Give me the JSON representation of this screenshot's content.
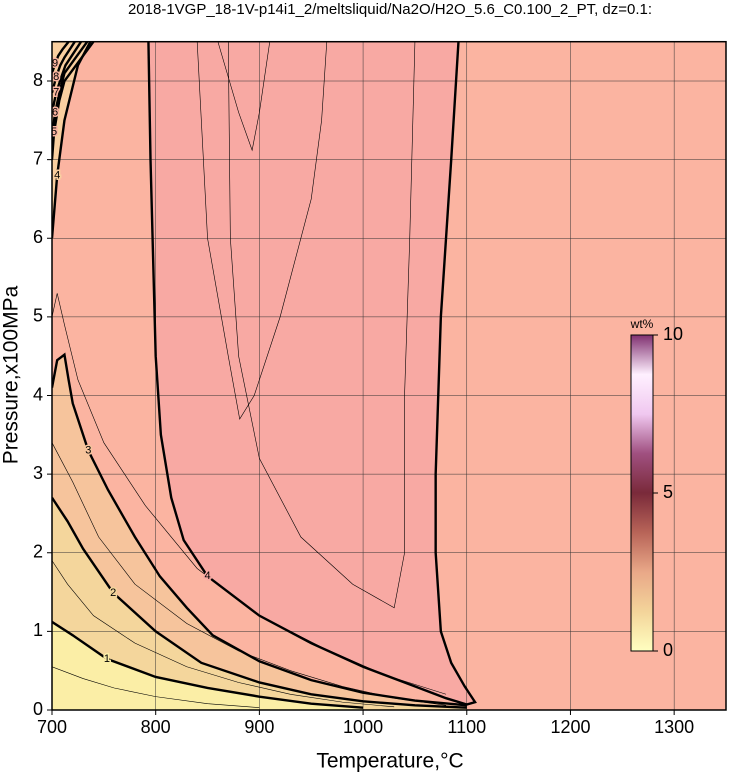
{
  "chart_data": {
    "type": "contour",
    "title": "2018-1VGP_18-1V-p14i1_2/meltsliquid/Na2O/H2O_5.6_C0.100_2_PT, dz=0.1:",
    "x_label": "Temperature,°C",
    "y_label": "Pressure,x100MPa",
    "xlim": [
      700,
      1350
    ],
    "ylim": [
      0,
      8.5
    ],
    "xticks": [
      700,
      800,
      900,
      1000,
      1100,
      1200,
      1300
    ],
    "yticks": [
      0,
      1,
      2,
      3,
      4,
      5,
      6,
      7,
      8
    ],
    "grid": true,
    "background": "#fbb4a1",
    "colorbar": {
      "label": "wt%",
      "lim": [
        0,
        10
      ],
      "ticks": [
        0,
        5,
        10
      ],
      "colors": [
        "#ffffc0",
        "#f3d49a",
        "#e9a888",
        "#b86458",
        "#7a2a3a",
        "#a05080",
        "#f0c8f0",
        "#fff0ff",
        "#803070"
      ]
    },
    "contours": [
      {
        "level": 4,
        "major": true,
        "fill": "#f8a9a3",
        "x": [
          793,
          795,
          798,
          800,
          805,
          815,
          827,
          850,
          900,
          950,
          1000,
          1050,
          1080,
          1100,
          1108,
          1098,
          1085,
          1075,
          1070,
          1070,
          1075,
          1085,
          1092
        ],
        "y": [
          8.5,
          7,
          5.5,
          4.5,
          3.5,
          2.7,
          2.16,
          1.7,
          1.2,
          0.85,
          0.55,
          0.3,
          0.15,
          0.07,
          0.1,
          0.3,
          0.6,
          1.0,
          2.0,
          3.0,
          5.0,
          7.0,
          8.5
        ]
      },
      {
        "level": 4,
        "major": true,
        "fill": "#f9cfa0",
        "x": [
          700,
          705,
          712,
          725,
          737
        ],
        "y": [
          6.0,
          6.8,
          7.5,
          8.2,
          8.5
        ]
      },
      {
        "level": 3,
        "major": true,
        "fill": "#f6c49c",
        "x": [
          700,
          705,
          712,
          716,
          720,
          735,
          754,
          780,
          804,
          830,
          855,
          900,
          950,
          1000,
          1050,
          1100
        ],
        "y": [
          4.1,
          4.45,
          4.52,
          4.2,
          3.9,
          3.3,
          2.8,
          2.2,
          1.7,
          1.3,
          0.95,
          0.62,
          0.38,
          0.22,
          0.12,
          0.06
        ]
      },
      {
        "level": 2,
        "major": true,
        "fill": "#f4d69c",
        "x": [
          700,
          715,
          730,
          759,
          800,
          844,
          900,
          950,
          1000,
          1050,
          1100
        ],
        "y": [
          2.7,
          2.4,
          2.05,
          1.49,
          1.0,
          0.6,
          0.35,
          0.2,
          0.11,
          0.06,
          0.03
        ]
      },
      {
        "level": 1,
        "major": true,
        "fill": "#fbeea6",
        "x": [
          700,
          720,
          753,
          800,
          850,
          900,
          950,
          1000
        ],
        "y": [
          1.12,
          0.95,
          0.65,
          0.42,
          0.28,
          0.17,
          0.08,
          0.03
        ]
      },
      {
        "level": 0.5,
        "major": false,
        "x": [
          700,
          730,
          760,
          800,
          850,
          900
        ],
        "y": [
          0.55,
          0.4,
          0.28,
          0.17,
          0.08,
          0.03
        ]
      },
      {
        "level": 1.5,
        "major": false,
        "x": [
          700,
          715,
          740,
          780,
          830,
          880,
          930,
          980,
          1030
        ],
        "y": [
          1.9,
          1.6,
          1.2,
          0.85,
          0.55,
          0.35,
          0.2,
          0.1,
          0.04
        ]
      },
      {
        "level": 2.5,
        "major": false,
        "x": [
          700,
          720,
          745,
          780,
          830,
          880,
          930,
          980,
          1030,
          1080
        ],
        "y": [
          3.4,
          2.9,
          2.2,
          1.6,
          1.1,
          0.75,
          0.5,
          0.3,
          0.15,
          0.06
        ]
      },
      {
        "level": 3.5,
        "major": false,
        "x": [
          700,
          705,
          712,
          725,
          750,
          790,
          840,
          900,
          960,
          1020,
          1080
        ],
        "y": [
          5.0,
          5.3,
          4.9,
          4.2,
          3.4,
          2.6,
          1.8,
          1.2,
          0.8,
          0.45,
          0.2
        ]
      },
      {
        "level": 4.2,
        "major": false,
        "x": [
          870,
          872,
          880,
          900,
          940,
          990,
          1030,
          1040,
          1040,
          1045,
          1050
        ],
        "y": [
          8.5,
          6,
          4.5,
          3.2,
          2.2,
          1.6,
          1.3,
          2.0,
          4,
          6,
          8.5
        ]
      },
      {
        "level": 4.3,
        "major": false,
        "x": [
          840,
          850,
          870,
          881,
          895,
          920,
          950,
          960,
          965
        ],
        "y": [
          8.5,
          6,
          4.5,
          3.7,
          4.0,
          5,
          6.5,
          7.5,
          8.5
        ]
      },
      {
        "level": 4.4,
        "major": false,
        "x": [
          860,
          880,
          893,
          900,
          910
        ],
        "y": [
          8.5,
          7.6,
          7.12,
          7.6,
          8.5
        ]
      },
      {
        "level": 5,
        "major": true,
        "label_color": "#ff8fc8",
        "x": [
          700,
          702,
          707,
          712,
          740
        ],
        "y": [
          7.0,
          7.35,
          7.75,
          8.0,
          8.5
        ]
      },
      {
        "level": 6,
        "major": true,
        "label_color": "#ff8fc8",
        "x": [
          700,
          703,
          708,
          712,
          734
        ],
        "y": [
          7.3,
          7.6,
          7.9,
          8.1,
          8.5
        ]
      },
      {
        "level": 7,
        "major": true,
        "label_color": "#ff8fc8",
        "x": [
          700,
          704,
          709,
          713,
          728
        ],
        "y": [
          7.6,
          7.85,
          8.05,
          8.2,
          8.5
        ]
      },
      {
        "level": 8,
        "major": true,
        "label_color": "#ff8fc8",
        "x": [
          700,
          704,
          708,
          712,
          722
        ],
        "y": [
          7.85,
          8.05,
          8.2,
          8.3,
          8.5
        ]
      },
      {
        "level": 9,
        "major": true,
        "label_color": "#ff8fc8",
        "x": [
          700,
          703,
          706,
          710,
          716
        ],
        "y": [
          8.1,
          8.22,
          8.32,
          8.4,
          8.5
        ]
      }
    ]
  }
}
